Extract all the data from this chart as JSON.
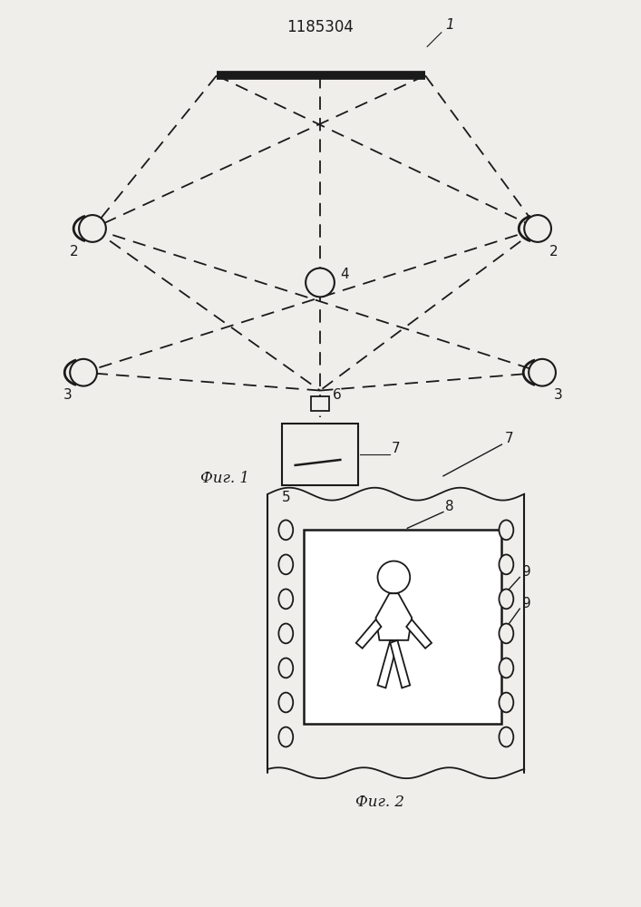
{
  "title": "1185304",
  "fig1_label": "Фиг. 1",
  "fig2_label": "Фиг. 2",
  "bg_color": "#f0eeeb",
  "line_color": "#1a1a1a",
  "label_1": "1",
  "label_2a": "2",
  "label_2b": "2",
  "label_3a": "3",
  "label_3b": "3",
  "label_4": "4",
  "label_5": "5",
  "label_6": "6",
  "label_7a": "7",
  "label_7b": "7",
  "label_8": "8",
  "label_9a": "9",
  "label_9b": "9"
}
